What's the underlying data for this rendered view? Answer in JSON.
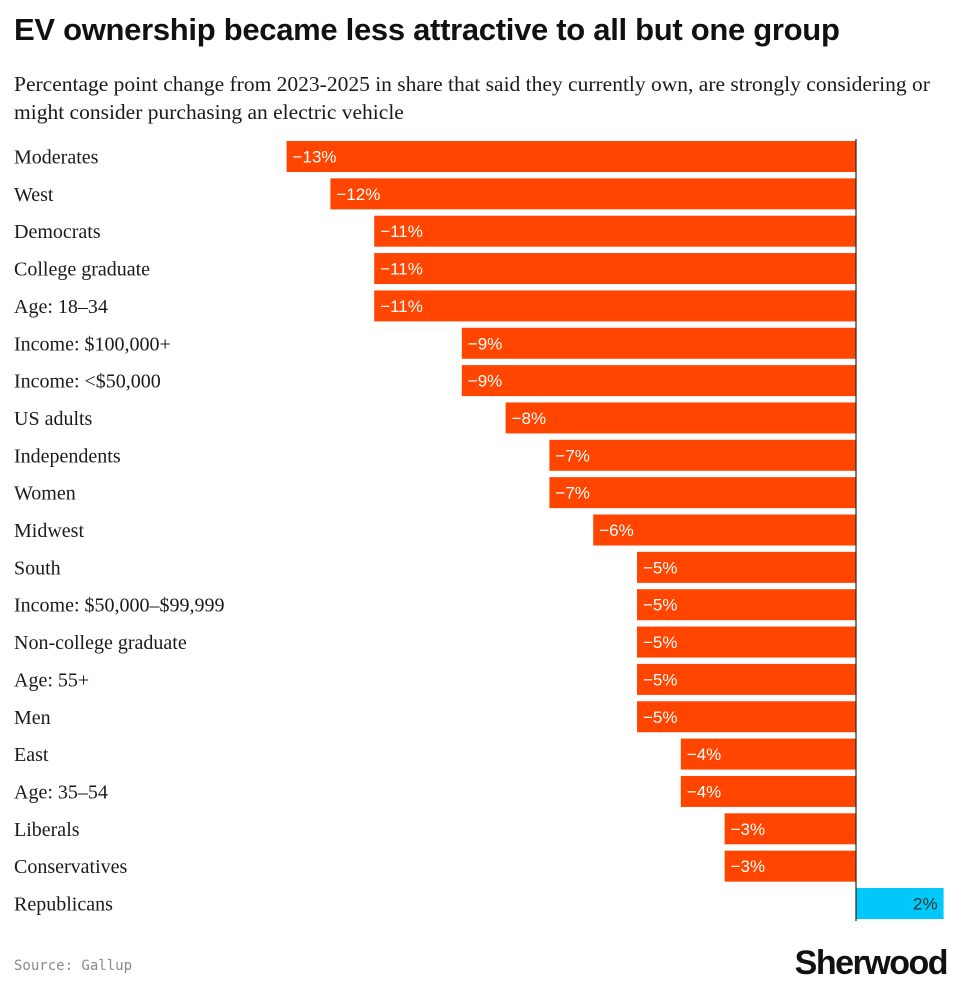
{
  "chart_data": {
    "type": "bar",
    "orientation": "horizontal",
    "title": "EV ownership became less attractive to all but one group",
    "subtitle": "Percentage point change from 2023-2025 in share that said they currently own, are strongly considering or might consider purchasing an electric vehicle",
    "categories": [
      "Moderates",
      "West",
      "Democrats",
      "College graduate",
      "Age: 18–34",
      "Income: $100,000+",
      "Income: <$50,000",
      "US adults",
      "Independents",
      "Women",
      "Midwest",
      "South",
      "Income: $50,000–$99,999",
      "Non-college graduate",
      "Age: 55+",
      "Men",
      "East",
      "Age: 35–54",
      "Liberals",
      "Conservatives",
      "Republicans"
    ],
    "values": [
      -13,
      -12,
      -11,
      -11,
      -11,
      -9,
      -9,
      -8,
      -7,
      -7,
      -6,
      -5,
      -5,
      -5,
      -5,
      -5,
      -4,
      -4,
      -3,
      -3,
      2
    ],
    "labels": [
      "−13%",
      "−12%",
      "−11%",
      "−11%",
      "−11%",
      "−9%",
      "−9%",
      "−8%",
      "−7%",
      "−7%",
      "−6%",
      "−5%",
      "−5%",
      "−5%",
      "−5%",
      "−5%",
      "−4%",
      "−4%",
      "−3%",
      "−3%",
      "2%"
    ],
    "xlim": [
      -13,
      2
    ],
    "negative_color": "#FF4500",
    "positive_color": "#00C8F8",
    "zero_line_color": "#222222",
    "negative_label_color": "#ffffff",
    "positive_label_color": "#333333",
    "grid": false
  },
  "footer": {
    "source": "Source: Gallup",
    "brand": "Sherwood"
  }
}
